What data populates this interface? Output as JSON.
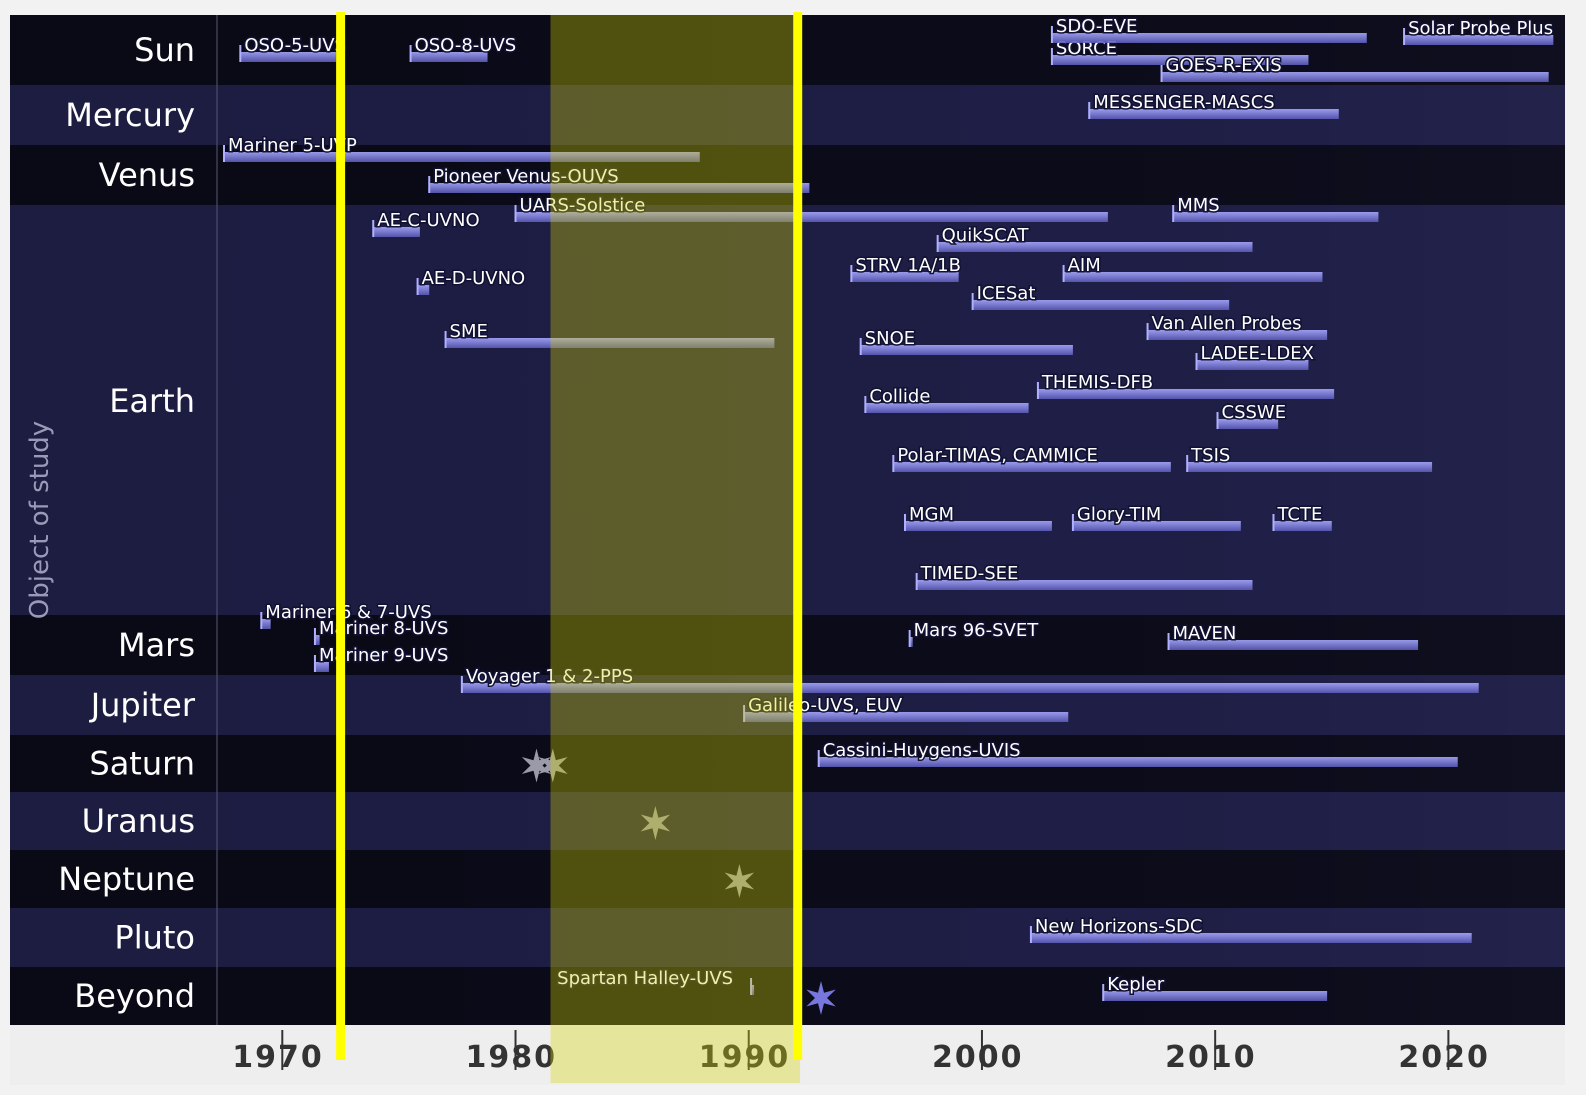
{
  "chart_data": {
    "type": "timeline",
    "y_label": "Object of study",
    "xlim": [
      1967.2,
      2025
    ],
    "xticks": [
      1970,
      1980,
      1990,
      2000,
      2010,
      2020
    ],
    "highlight_lines": [
      1972.5,
      1992.1
    ],
    "highlight_band": [
      1981.5,
      1992.2
    ],
    "rows": [
      {
        "name": "Sun",
        "markers": [],
        "missions": [
          {
            "name": "OSO-5-UVS",
            "start": 1968.2,
            "end": 1972.3
          },
          {
            "name": "OSO-8-UVS",
            "start": 1975.5,
            "end": 1978.8
          },
          {
            "name": "SORCE",
            "start": 2003,
            "end": 2014
          },
          {
            "name": "SDO-EVE",
            "start": 2003,
            "end": 2016.5
          },
          {
            "name": "Solar Probe Plus",
            "start": 2018.1,
            "end": 2024.5
          },
          {
            "name": "GOES-R-EXIS",
            "start": 2007.7,
            "end": 2024.3
          }
        ]
      },
      {
        "name": "Mercury",
        "markers": [],
        "missions": [
          {
            "name": "MESSENGER-MASCS",
            "start": 2004.6,
            "end": 2015.3
          }
        ]
      },
      {
        "name": "Venus",
        "markers": [],
        "missions": [
          {
            "name": "Mariner 5-UVP",
            "start": 1967.5,
            "end": 1987.9
          },
          {
            "name": "Pioneer Venus-OUVS",
            "start": 1976.3,
            "end": 1992.6
          }
        ]
      },
      {
        "name": "Earth",
        "markers": [],
        "missions": [
          {
            "name": "UARS-Solstice",
            "start": 1980,
            "end": 2005.4
          },
          {
            "name": "AE-C-UVNO",
            "start": 1973.9,
            "end": 1975.9
          },
          {
            "name": "MMS",
            "start": 2008.2,
            "end": 2017
          },
          {
            "name": "QuikSCAT",
            "start": 1998.1,
            "end": 2011.6
          },
          {
            "name": "STRV 1A/1B",
            "start": 1994.4,
            "end": 1999
          },
          {
            "name": "AIM",
            "start": 2003.5,
            "end": 2014.6
          },
          {
            "name": "AE-D-UVNO",
            "start": 1975.8,
            "end": 1976.3
          },
          {
            "name": "ICESat",
            "start": 1999.6,
            "end": 2010.6
          },
          {
            "name": "Van Allen Probes",
            "start": 2007.1,
            "end": 2014.8
          },
          {
            "name": "SME",
            "start": 1977,
            "end": 1991.1
          },
          {
            "name": "SNOE",
            "start": 1994.8,
            "end": 2003.9
          },
          {
            "name": "LADEE-LDEX",
            "start": 2009.2,
            "end": 2014
          },
          {
            "name": "THEMIS-DFB",
            "start": 2002.4,
            "end": 2015.1
          },
          {
            "name": "Collide",
            "start": 1995,
            "end": 2002
          },
          {
            "name": "CSSWE",
            "start": 2010.1,
            "end": 2012.7
          },
          {
            "name": "Polar-TIMAS, CAMMICE",
            "start": 1996.2,
            "end": 2008.1
          },
          {
            "name": "TSIS",
            "start": 2008.8,
            "end": 2019.3
          },
          {
            "name": "MGM",
            "start": 1996.7,
            "end": 2003
          },
          {
            "name": "Glory-TIM",
            "start": 2003.9,
            "end": 2011.1
          },
          {
            "name": "TCTE",
            "start": 2012.5,
            "end": 2015
          },
          {
            "name": "TIMED-SEE",
            "start": 1997.2,
            "end": 2011.6
          }
        ]
      },
      {
        "name": "Mars",
        "markers": [],
        "missions": [
          {
            "name": "Mariner 6 & 7-UVS",
            "start": 1969.1,
            "end": 1969.5
          },
          {
            "name": "Mariner 8-UVS",
            "start": 1971.4,
            "end": 1971.6
          },
          {
            "name": "Mariner 9-UVS",
            "start": 1971.4,
            "end": 1972
          },
          {
            "name": "Mars 96-SVET",
            "start": 1996.9,
            "end": 1997
          },
          {
            "name": "MAVEN",
            "start": 2008,
            "end": 2018.7
          }
        ]
      },
      {
        "name": "Jupiter",
        "markers": [],
        "missions": [
          {
            "name": "Voyager 1 & 2-PPS",
            "start": 1977.7,
            "end": 2021.3
          },
          {
            "name": "Galileo-UVS, EUV",
            "start": 1989.8,
            "end": 2003.7
          }
        ]
      },
      {
        "name": "Saturn",
        "markers": [
          1980.9,
          1981.6
        ],
        "missions": [
          {
            "name": "Cassini-Huygens-UVIS",
            "start": 1993,
            "end": 2020.4
          }
        ]
      },
      {
        "name": "Uranus",
        "markers": [
          1986
        ],
        "missions": []
      },
      {
        "name": "Neptune",
        "markers": [
          1989.6
        ],
        "missions": []
      },
      {
        "name": "Pluto",
        "markers": [],
        "missions": [
          {
            "name": "New Horizons-SDC",
            "start": 2002.1,
            "end": 2021
          }
        ]
      },
      {
        "name": "Beyond",
        "markers": [
          1993.1
        ],
        "missions": [
          {
            "name": "Spartan Halley-UVS",
            "start": 1990.1,
            "end": 1990.2
          },
          {
            "name": "Kepler",
            "start": 2005.2,
            "end": 2014.8
          }
        ]
      }
    ]
  }
}
